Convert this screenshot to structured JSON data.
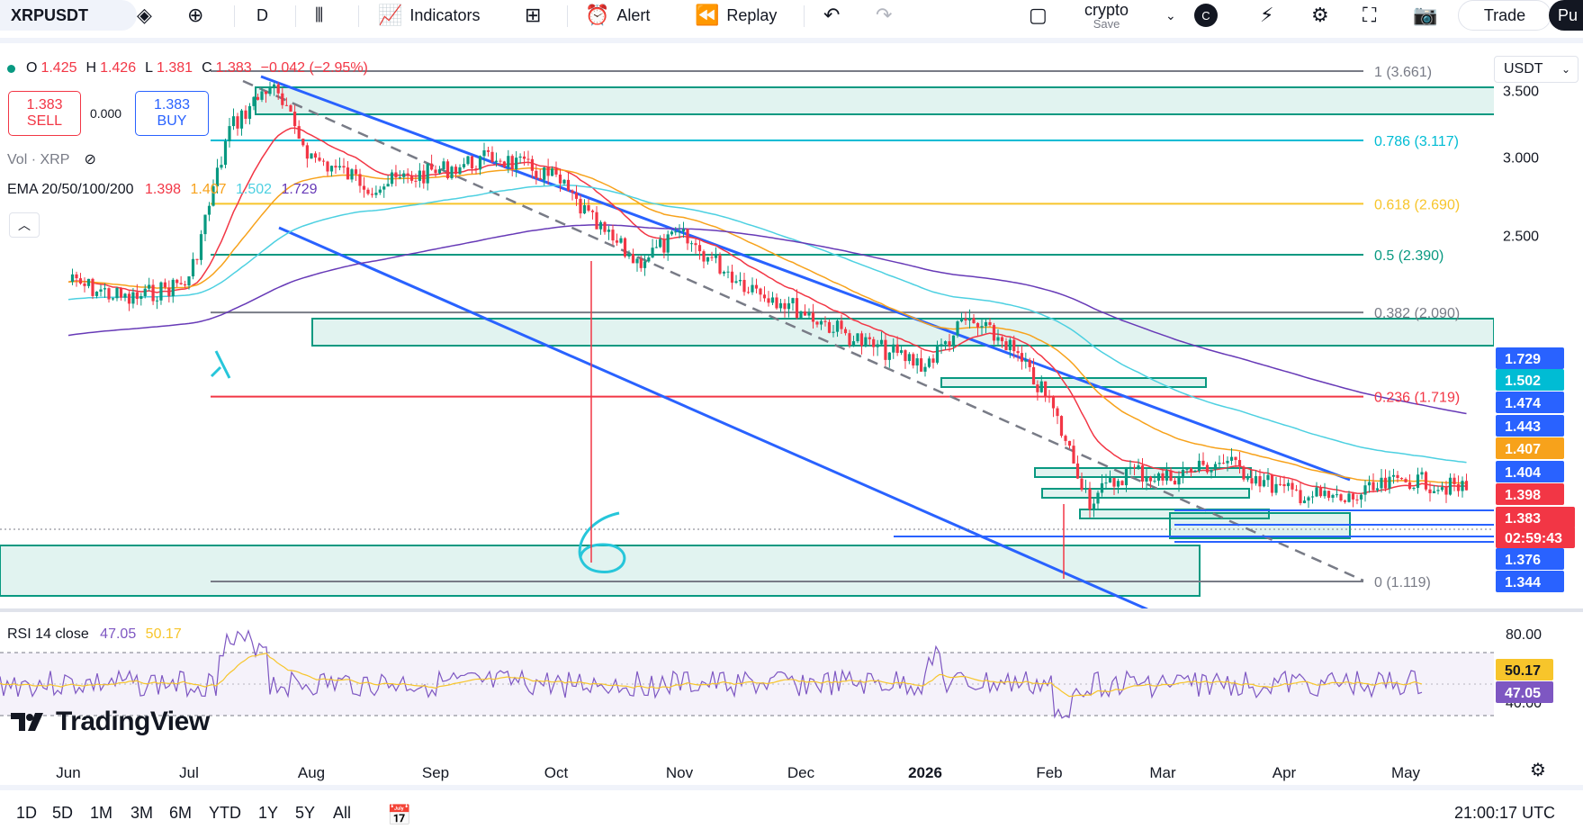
{
  "toolbar": {
    "symbol": "XRPUSDT",
    "interval": "D",
    "indicators_label": "Indicators",
    "alert_label": "Alert",
    "replay_label": "Replay",
    "layout_name": "crypto",
    "layout_save": "Save",
    "avatar_letter": "C",
    "trade_label": "Trade",
    "publish_label": "Pu"
  },
  "legend": {
    "open_key": "O",
    "open": "1.425",
    "high_key": "H",
    "high": "1.426",
    "low_key": "L",
    "low": "1.381",
    "close_key": "C",
    "close": "1.383",
    "change": "−0.042 (−2.95%)",
    "sell_price": "1.383",
    "sell_label": "SELL",
    "spread": "0.000",
    "buy_price": "1.383",
    "buy_label": "BUY",
    "vol": "Vol · XRP",
    "ema_name": "EMA 20/50/100/200",
    "ema_values": [
      "1.398",
      "1.407",
      "1.502",
      "1.729"
    ],
    "rsi_name": "RSI 14 close",
    "rsi_values": [
      "47.05",
      "50.17"
    ]
  },
  "currency": "USDT",
  "watermark": "TradingView",
  "timeframes": [
    "1D",
    "5D",
    "1M",
    "3M",
    "6M",
    "YTD",
    "1Y",
    "5Y",
    "All"
  ],
  "clock": "21:00:17 UTC",
  "colors": {
    "up": "#089981",
    "down": "#f23645",
    "ema20": "#f23645",
    "ema50": "#f7a21b",
    "ema100": "#4dd0e1",
    "ema200": "#673ab7",
    "channel": "#2962ff",
    "zone": "#089981",
    "rsi": "#7e57c2",
    "rsi_ma": "#f7c52b"
  },
  "chart_data": {
    "type": "line",
    "title": "XRPUSDT · D",
    "x_ticks": [
      "Jun",
      "Jul",
      "Aug",
      "Sep",
      "Oct",
      "Nov",
      "Dec",
      "2026",
      "Feb",
      "Mar",
      "Apr",
      "May"
    ],
    "y_ticks": [
      "3.500",
      "3.000",
      "2.500"
    ],
    "ylim": [
      1.3,
      3.66
    ],
    "fib_levels": [
      {
        "ratio": "1",
        "price": 3.661,
        "label": "1 (3.661)",
        "color": "#787b86"
      },
      {
        "ratio": "0.786",
        "price": 3.117,
        "label": "0.786 (3.117)",
        "color": "#00bcd4"
      },
      {
        "ratio": "0.618",
        "price": 2.69,
        "label": "0.618 (2.690)",
        "color": "#f7c52b"
      },
      {
        "ratio": "0.5",
        "price": 2.39,
        "label": "0.5 (2.390)",
        "color": "#089981"
      },
      {
        "ratio": "0.382",
        "price": 2.09,
        "label": "0.382 (2.090)",
        "color": "#787b86"
      },
      {
        "ratio": "0.236",
        "price": 1.719,
        "label": "0.236 (1.719)",
        "color": "#f23645"
      },
      {
        "ratio": "0",
        "price": 1.119,
        "label": "0 (1.119)",
        "color": "#787b86"
      }
    ],
    "price_badges": [
      {
        "value": "1.729",
        "bg": "#2962ff",
        "fg": "#ffffff"
      },
      {
        "value": "1.502",
        "bg": "#00bcd4",
        "fg": "#ffffff"
      },
      {
        "value": "1.474",
        "bg": "#2962ff",
        "fg": "#ffffff"
      },
      {
        "value": "1.443",
        "bg": "#2962ff",
        "fg": "#ffffff"
      },
      {
        "value": "1.407",
        "bg": "#f7a21b",
        "fg": "#ffffff"
      },
      {
        "value": "1.404",
        "bg": "#2962ff",
        "fg": "#ffffff"
      },
      {
        "value": "1.398",
        "bg": "#f23645",
        "fg": "#ffffff"
      },
      {
        "value": "1.383",
        "bg": "#f23645",
        "fg": "#ffffff"
      },
      {
        "value": "02:59:43",
        "bg": "#f23645",
        "fg": "#ffffff"
      },
      {
        "value": "1.376",
        "bg": "#2962ff",
        "fg": "#ffffff"
      },
      {
        "value": "1.344",
        "bg": "#2962ff",
        "fg": "#ffffff"
      }
    ],
    "rsi_axis": [
      "80.00",
      "40.00"
    ],
    "rsi_badges": [
      {
        "value": "50.17",
        "bg": "#f7c52b",
        "fg": "#131722"
      },
      {
        "value": "47.05",
        "bg": "#7e57c2",
        "fg": "#ffffff"
      }
    ],
    "close_path": [
      [
        "Jun",
        2.25
      ],
      [
        "Jun",
        2.15
      ],
      [
        "Jul",
        2.25
      ],
      [
        "Jul",
        3.2
      ],
      [
        "Jul",
        3.55
      ],
      [
        "Aug",
        3.0
      ],
      [
        "Aug",
        2.8
      ],
      [
        "Sep",
        2.9
      ],
      [
        "Sep",
        3.0
      ],
      [
        "Oct",
        2.85
      ],
      [
        "Oct",
        2.55
      ],
      [
        "Oct",
        2.35
      ],
      [
        "Nov",
        2.5
      ],
      [
        "Nov",
        2.25
      ],
      [
        "Dec",
        2.1
      ],
      [
        "Dec",
        1.95
      ],
      [
        "2026",
        1.85
      ],
      [
        "2026",
        2.05
      ],
      [
        "2026",
        1.95
      ],
      [
        "Feb",
        1.7
      ],
      [
        "Feb",
        1.35
      ],
      [
        "Feb",
        1.45
      ],
      [
        "Mar",
        1.42
      ],
      [
        "Mar",
        1.48
      ],
      [
        "Apr",
        1.38
      ],
      [
        "Apr",
        1.35
      ],
      [
        "May",
        1.42
      ],
      [
        "May",
        1.383
      ]
    ]
  }
}
